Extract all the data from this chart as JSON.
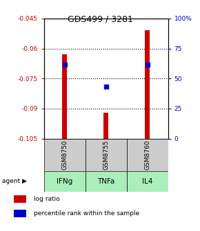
{
  "title": "GDS499 / 3281",
  "categories": [
    "IFNg",
    "TNFa",
    "IL4"
  ],
  "gsm_labels": [
    "GSM8750",
    "GSM8755",
    "GSM8760"
  ],
  "bar_tops": [
    -0.063,
    -0.092,
    -0.051
  ],
  "bar_bottom": -0.105,
  "percentile_values": [
    -0.068,
    -0.079,
    -0.068
  ],
  "ylim_left": [
    -0.105,
    -0.045
  ],
  "yticks_left": [
    -0.105,
    -0.09,
    -0.075,
    -0.06,
    -0.045
  ],
  "yticks_right": [
    0,
    25,
    50,
    75,
    100
  ],
  "left_color": "#cc0000",
  "right_color": "#0000cc",
  "bar_color": "#cc0000",
  "dot_color": "#0000cc",
  "agent_labels_bg": "#aaeebb",
  "gsm_labels_bg": "#cccccc",
  "legend_red_label": "log ratio",
  "legend_blue_label": "percentile rank within the sample"
}
